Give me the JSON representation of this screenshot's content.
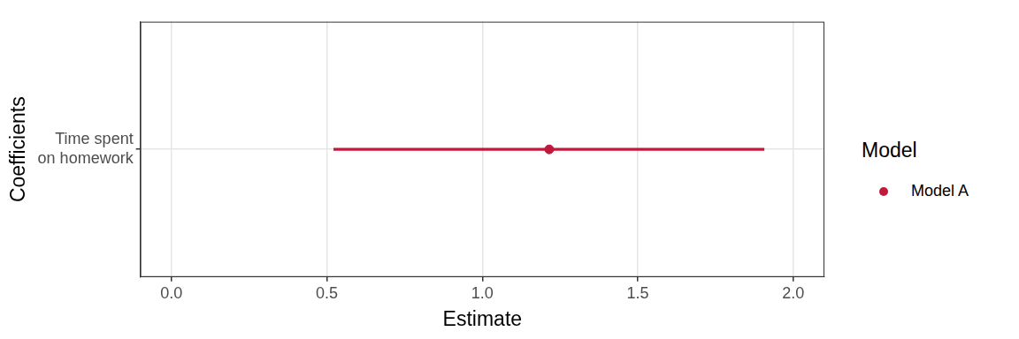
{
  "chart_data": {
    "type": "coefficient",
    "categories": [
      "Time spent\non homework"
    ],
    "series": [
      {
        "name": "Model A",
        "color": "#c0193c",
        "values": [
          1.215
        ],
        "lower": [
          0.522
        ],
        "upper": [
          1.906
        ]
      }
    ],
    "xlabel": "Estimate",
    "ylabel": "Coefficients",
    "legend_title": "Model",
    "xlim": [
      -0.1,
      2.1
    ],
    "xticks": [
      {
        "value": 0,
        "label": "0.0"
      },
      0.5,
      {
        "value": 1,
        "label": "1.0"
      },
      1.5,
      {
        "value": 2,
        "label": "2.0"
      }
    ],
    "grid": true,
    "legend": "right",
    "marker": "circle"
  }
}
